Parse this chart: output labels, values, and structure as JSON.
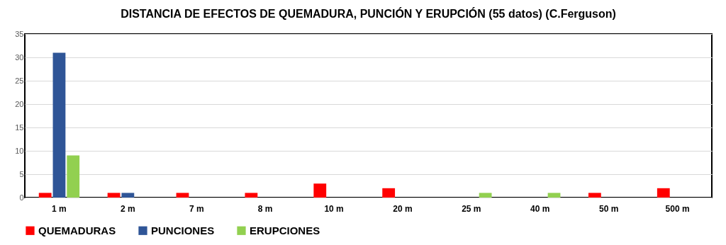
{
  "chart_data": {
    "type": "bar",
    "title": "DISTANCIA DE EFECTOS DE QUEMADURA, PUNCIÓN Y ERUPCIÓN  (55 datos) (C.Ferguson)",
    "categories": [
      "1 m",
      "2 m",
      "7 m",
      "8 m",
      "10 m",
      "20 m",
      "25 m",
      "40 m",
      "50 m",
      "500 m"
    ],
    "series": [
      {
        "name": "QUEMADURAS",
        "color": "#ff0000",
        "values": [
          1,
          1,
          1,
          1,
          3,
          2,
          0,
          0,
          1,
          2
        ]
      },
      {
        "name": "PUNCIONES",
        "color": "#2f5597",
        "values": [
          31,
          1,
          0,
          0,
          0,
          0,
          0,
          0,
          0,
          0
        ]
      },
      {
        "name": "ERUPCIONES",
        "color": "#92d050",
        "values": [
          9,
          0,
          0,
          0,
          0,
          0,
          1,
          1,
          0,
          0
        ]
      }
    ],
    "ylim": [
      0,
      35
    ],
    "yticks": [
      0,
      5,
      10,
      15,
      20,
      25,
      30,
      35
    ],
    "grid": "y",
    "legend": "bottom"
  }
}
